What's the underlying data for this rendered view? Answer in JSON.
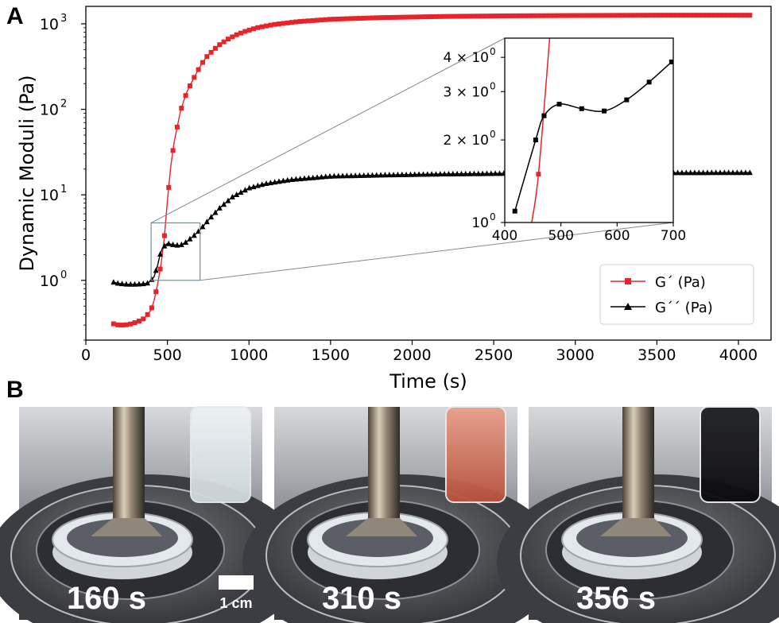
{
  "panel_labels": [
    "A",
    "B"
  ],
  "colors": {
    "gp": "#e8232a",
    "gpp": "#000000",
    "zoom_box": "#7a8c92"
  },
  "chart_data": [
    {
      "type": "line",
      "panel": "A",
      "xlabel": "Time (s)",
      "ylabel": "Dynamic Moduli (Pa)",
      "xlim": [
        0,
        4200
      ],
      "ylim": [
        0.2,
        1600
      ],
      "y_scale": "log",
      "x_ticks": [
        "0",
        "500",
        "1000",
        "1500",
        "2000",
        "2500",
        "3000",
        "3500",
        "4000"
      ],
      "y_ticks": [
        {
          "value": 1,
          "label": "10",
          "exp": "0"
        },
        {
          "value": 10,
          "label": "10",
          "exp": "1"
        },
        {
          "value": 100,
          "label": "10",
          "exp": "2"
        },
        {
          "value": 1000,
          "label": "10",
          "exp": "3"
        }
      ],
      "legend_position": "lower-right",
      "series": [
        {
          "name": "G´ (Pa)",
          "color": "#e8232a",
          "marker": "square",
          "x": [
            170,
            200,
            240,
            280,
            320,
            360,
            400,
            420,
            440,
            460,
            480,
            500,
            520,
            540,
            560,
            580,
            600,
            620,
            650,
            680,
            710,
            740,
            780,
            820,
            870,
            920,
            980,
            1050,
            1150,
            1300,
            1500,
            1800,
            2200,
            2600,
            3000,
            3500,
            4080
          ],
          "y": [
            0.31,
            0.3,
            0.3,
            0.31,
            0.33,
            0.36,
            0.45,
            0.6,
            0.9,
            1.5,
            3.0,
            8.5,
            21,
            40,
            62,
            95,
            125,
            160,
            210,
            270,
            340,
            410,
            490,
            570,
            660,
            740,
            820,
            900,
            980,
            1060,
            1130,
            1180,
            1220,
            1240,
            1250,
            1260,
            1260
          ]
        },
        {
          "name": "G´´ (Pa)",
          "color": "#000000",
          "marker": "triangle",
          "x": [
            170,
            200,
            250,
            300,
            350,
            380,
            400,
            418,
            440,
            455,
            470,
            500,
            540,
            575,
            615,
            660,
            700,
            760,
            820,
            900,
            1000,
            1100,
            1250,
            1500,
            1800,
            2200,
            2600,
            3000,
            3500,
            4080
          ],
          "y": [
            0.95,
            0.92,
            0.9,
            0.9,
            0.91,
            0.93,
            1.0,
            1.1,
            1.5,
            2.0,
            2.4,
            2.7,
            2.6,
            2.55,
            2.8,
            3.3,
            3.9,
            5.3,
            7.0,
            9.5,
            12,
            13.5,
            15,
            16.5,
            17,
            17.5,
            17.8,
            18,
            18.1,
            18.2
          ]
        }
      ]
    },
    {
      "type": "line",
      "panel": "A-inset",
      "xlim": [
        400,
        700
      ],
      "ylim": [
        1,
        4.7
      ],
      "y_scale": "log",
      "x_ticks": [
        "400",
        "500",
        "600",
        "700"
      ],
      "y_ticks": [
        {
          "value": 1,
          "label": "10",
          "exp": "0"
        },
        {
          "value": 2,
          "label": "2 × 10",
          "exp": "0"
        },
        {
          "value": 3,
          "label": "3 × 10",
          "exp": "0"
        },
        {
          "value": 4,
          "label": "4 × 10",
          "exp": "0"
        }
      ],
      "series": [
        {
          "name": "G´ (Pa)",
          "color": "#e8232a",
          "marker": "square",
          "x": [
            448,
            460,
            480
          ],
          "y": [
            1.0,
            1.5,
            4.7
          ]
        },
        {
          "name": "G´´ (Pa)",
          "color": "#000000",
          "marker": "square",
          "x": [
            418,
            455,
            470,
            497,
            537,
            577,
            617,
            657,
            697
          ],
          "y": [
            1.1,
            2.0,
            2.45,
            2.7,
            2.6,
            2.55,
            2.8,
            3.25,
            3.85
          ]
        }
      ]
    }
  ],
  "photos": [
    {
      "time_label": "160 s",
      "vial": "clear"
    },
    {
      "time_label": "310 s",
      "vial": "orange"
    },
    {
      "time_label": "356 s",
      "vial": "black"
    }
  ],
  "scale_bar": {
    "label": "1 cm"
  }
}
